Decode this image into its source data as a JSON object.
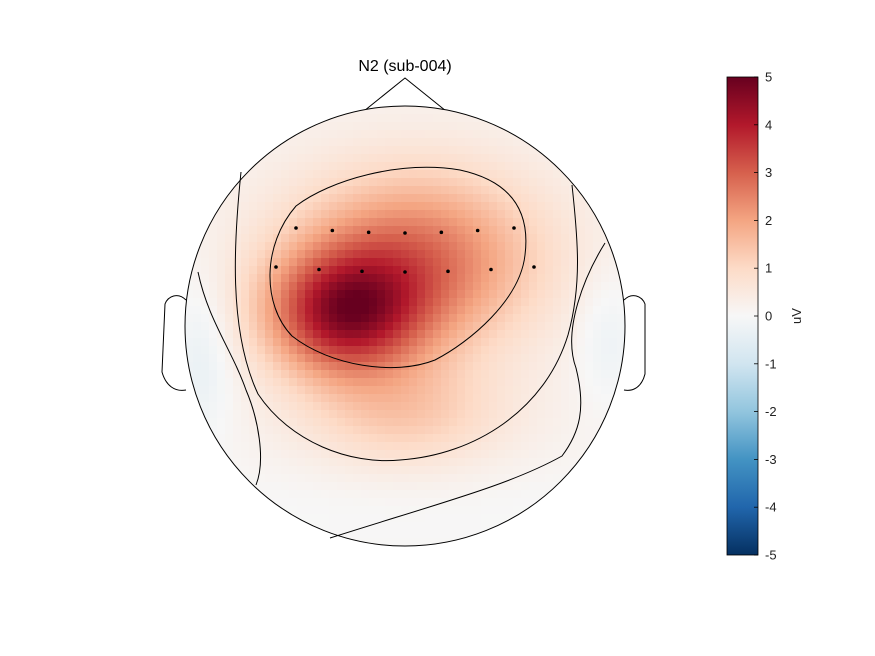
{
  "chart_data": {
    "type": "heatmap",
    "subtype": "scalp-topography",
    "title": "N2 (sub-004)",
    "colorbar": {
      "label": "uV",
      "min": -5,
      "max": 5,
      "ticks": [
        "5",
        "4",
        "3",
        "2",
        "1",
        "0",
        "-1",
        "-2",
        "-3",
        "-4",
        "-5"
      ],
      "colormap": [
        "#053061",
        "#2166ac",
        "#4393c3",
        "#92c5de",
        "#d1e5f0",
        "#f7f7f7",
        "#fddbc7",
        "#f4a582",
        "#d6604d",
        "#b2182b",
        "#67001f"
      ]
    },
    "contour_levels": [
      0,
      1,
      2,
      3
    ],
    "electrode_rows": [
      {
        "count": 7
      },
      {
        "count": 7
      }
    ],
    "peak_value_estimate": 3.7
  }
}
